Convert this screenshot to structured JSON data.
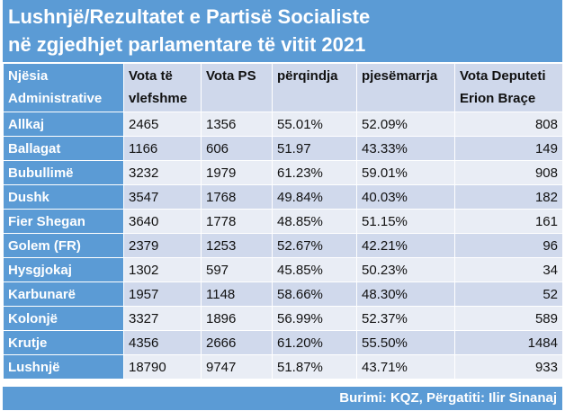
{
  "title": {
    "line1": "Lushnjë/Rezultatet e Partisë Socialiste",
    "line2": "në zgjedhjet parlamentare të vitit 2021"
  },
  "headers": [
    [
      "Njësia",
      "Administrative"
    ],
    [
      "Vota të",
      "vlefshme"
    ],
    [
      "Vota PS",
      ""
    ],
    [
      "përqindja",
      ""
    ],
    [
      "pjesëmarrja",
      ""
    ],
    [
      "Vota Deputeti",
      "Erion Braçe"
    ]
  ],
  "rows": [
    [
      "Allkaj",
      "2465",
      "1356",
      "55.01%",
      "52.09%",
      "808"
    ],
    [
      "Ballagat",
      "1166",
      "606",
      "51.97",
      "43.33%",
      "149"
    ],
    [
      "Bubullimë",
      "3232",
      "1979",
      "61.23%",
      "59.01%",
      "908"
    ],
    [
      "Dushk",
      "3547",
      "1768",
      "49.84%",
      "40.03%",
      "182"
    ],
    [
      "Fier Shegan",
      "3640",
      "1778",
      "48.85%",
      "51.15%",
      "161"
    ],
    [
      "Golem (FR)",
      "2379",
      "1253",
      "52.67%",
      "42.21%",
      "96"
    ],
    [
      "Hysgjokaj",
      "1302",
      "597",
      "45.85%",
      "50.23%",
      "34"
    ],
    [
      "Karbunarë",
      "1957",
      "1148",
      "58.66%",
      "48.30%",
      "52"
    ],
    [
      "Kolonjë",
      "3327",
      "1896",
      "56.99%",
      "52.37%",
      "589"
    ],
    [
      "Krutje",
      "4356",
      "2666",
      "61.20%",
      "55.50%",
      "1484"
    ],
    [
      "Lushnjë",
      "18790",
      "9747",
      "51.87%",
      "43.71%",
      "933"
    ]
  ],
  "footer": "Burimi: KQZ, Përgatiti: Ilir Sinanaj",
  "colors": {
    "accent": "#5b9bd5",
    "row_light": "#e9edf5",
    "row_dark": "#d0d9ec"
  }
}
